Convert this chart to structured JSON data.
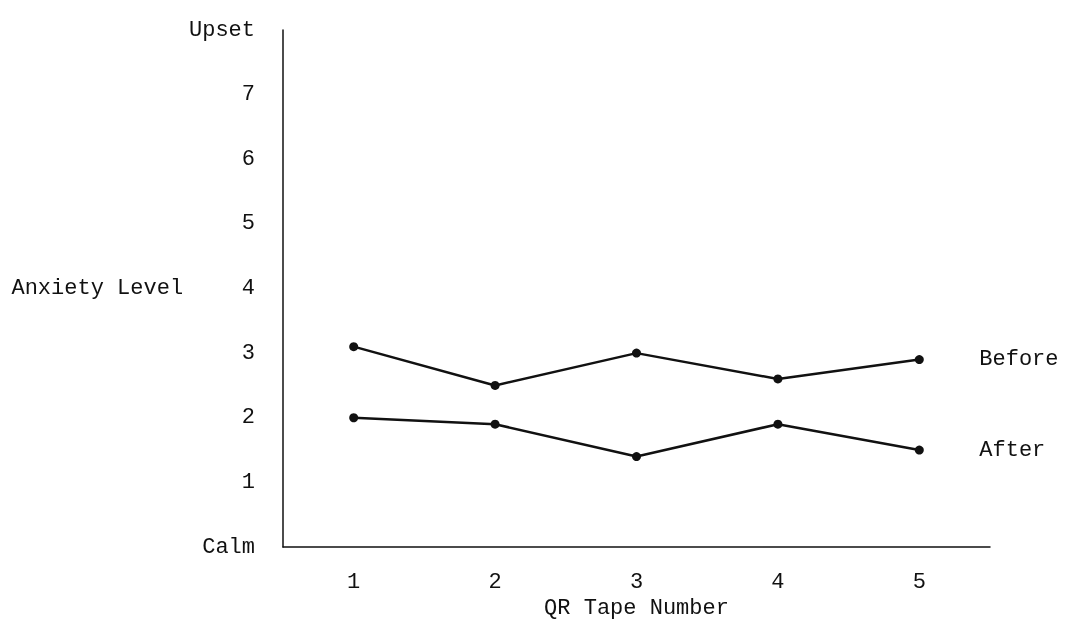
{
  "chart_data": {
    "type": "line",
    "xlabel": "QR Tape Number",
    "ylabel": "Anxiety Level",
    "categories": [
      "1",
      "2",
      "3",
      "4",
      "5"
    ],
    "series": [
      {
        "name": "Before",
        "color": "#111111",
        "values": [
          3.1,
          2.5,
          3.0,
          2.6,
          2.9
        ]
      },
      {
        "name": "After",
        "color": "#111111",
        "values": [
          2.0,
          1.9,
          1.4,
          1.9,
          1.5
        ]
      }
    ],
    "ylim": [
      0,
      8
    ],
    "yticks": [
      {
        "value": 0,
        "label": "Calm"
      },
      1,
      2,
      3,
      4,
      5,
      6,
      7,
      {
        "value": 8,
        "label": "Upset"
      }
    ],
    "grid": false,
    "legend": false,
    "marker": "circle",
    "line_style": "solid"
  }
}
